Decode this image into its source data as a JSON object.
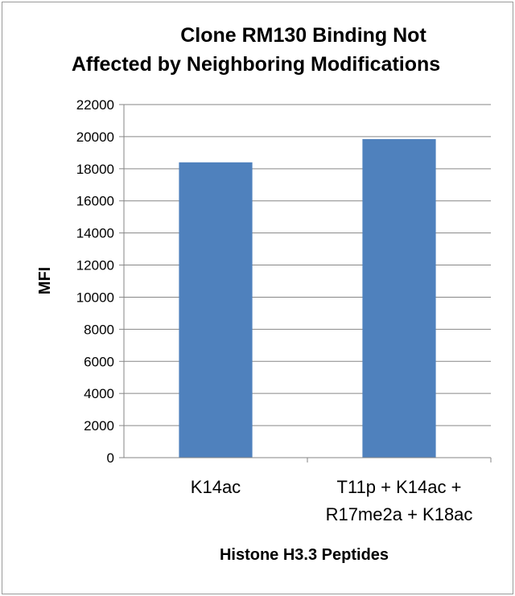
{
  "chart_data": {
    "type": "bar",
    "title_lines": [
      "Clone RM130 Binding Not",
      "Affected by Neighboring Modifications"
    ],
    "categories": [
      [
        "K14ac"
      ],
      [
        "T11p + K14ac +",
        "R17me2a + K18ac"
      ]
    ],
    "values": [
      18400,
      19850
    ],
    "xlabel": "Histone H3.3 Peptides",
    "ylabel": "MFI",
    "ylim": [
      0,
      22000
    ],
    "ytick_step": 2000,
    "grid": true,
    "legend": "none",
    "bar_color": "#4f81bd",
    "grid_color": "#868686"
  }
}
